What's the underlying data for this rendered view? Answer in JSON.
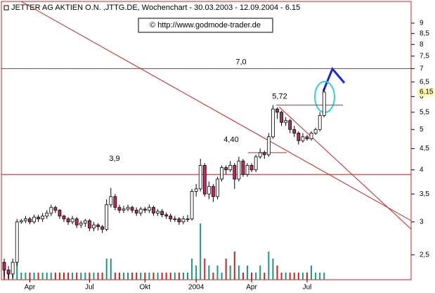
{
  "chart_data": {
    "type": "candlestick",
    "title": "JETTER AG AKTIEN O.N. ,JTTG.DE, Wochenchart - 30.03.2003 - 12.09.2004 - 6.15",
    "watermark": "© http://www.godmode-trader.de",
    "log_scale": true,
    "ylim": [
      2.18,
      10.15
    ],
    "yticks": [
      {
        "value": 2.5,
        "label": "2,5"
      },
      3,
      {
        "value": 3.5,
        "label": "3,5"
      },
      4,
      {
        "value": 4.5,
        "label": "4,5"
      },
      5,
      {
        "value": 5.5,
        "label": "5,5"
      },
      6,
      {
        "value": 6.5,
        "label": "6,5"
      },
      7,
      {
        "value": 7.5,
        "label": "7,5"
      },
      8,
      {
        "value": 8.5,
        "label": "8,5"
      },
      9
    ],
    "last_price": {
      "value": 6.15,
      "label": "6.15"
    },
    "hlines": [
      {
        "value": 7,
        "label": "7,0"
      },
      {
        "value": 3.9,
        "label": "3,9"
      }
    ],
    "levels": [
      {
        "value": 4.4,
        "label": "4,40"
      },
      {
        "value": 5.72,
        "label": "5,72"
      }
    ],
    "up_color": "#ffffff",
    "down_color": "#b03060",
    "volume_up_color": "#1a9a7a",
    "volume_down_color": "#d02020",
    "categories": [
      null,
      null,
      null,
      null,
      null,
      null,
      "Apr",
      null,
      null,
      null,
      null,
      null,
      null,
      null,
      null,
      null,
      null,
      null,
      null,
      null,
      "Jul",
      null,
      null,
      null,
      null,
      null,
      null,
      null,
      null,
      null,
      null,
      null,
      null,
      "Okt",
      null,
      null,
      null,
      null,
      null,
      null,
      null,
      null,
      null,
      null,
      null,
      "2004",
      null,
      null,
      null,
      null,
      null,
      null,
      null,
      null,
      null,
      null,
      null,
      null,
      "Apr",
      null,
      null,
      null,
      null,
      null,
      null,
      null,
      null,
      null,
      null,
      null,
      null,
      "Jul",
      null,
      null,
      null,
      null
    ],
    "open": [
      2.4,
      2.3,
      2.25,
      2.4,
      3.0,
      3.02,
      3.05,
      3.0,
      3.08,
      3.05,
      3.1,
      3.15,
      3.25,
      3.2,
      3.1,
      3.05,
      3.0,
      3.05,
      2.95,
      2.98,
      3.02,
      2.9,
      2.95,
      2.92,
      2.88,
      3.3,
      3.45,
      3.25,
      3.2,
      3.22,
      3.25,
      3.2,
      3.15,
      3.22,
      3.2,
      3.25,
      3.15,
      3.18,
      3.12,
      3.1,
      3.05,
      3.05,
      3.0,
      3.05,
      3.05,
      3.55,
      3.6,
      4.1,
      3.5,
      3.65,
      3.45,
      3.8,
      4.05,
      4.0,
      4.1,
      3.8,
      4.2,
      3.9,
      4.1,
      4.0,
      4.3,
      4.4,
      4.35,
      4.8,
      5.6,
      5.5,
      5.2,
      5.25,
      5.0,
      4.9,
      4.7,
      4.8,
      4.75,
      4.9,
      5.0,
      5.4
    ],
    "high": [
      2.45,
      2.35,
      2.45,
      3.05,
      3.05,
      3.1,
      3.08,
      3.12,
      3.12,
      3.15,
      3.2,
      3.3,
      3.28,
      3.22,
      3.12,
      3.08,
      3.1,
      3.08,
      3.02,
      3.05,
      3.05,
      3.0,
      2.98,
      2.95,
      3.4,
      3.62,
      3.5,
      3.3,
      3.28,
      3.3,
      3.28,
      3.25,
      3.26,
      3.26,
      3.3,
      3.28,
      3.22,
      3.22,
      3.16,
      3.14,
      3.1,
      3.08,
      3.1,
      3.12,
      3.6,
      3.7,
      4.25,
      4.15,
      3.75,
      3.7,
      3.85,
      4.1,
      4.1,
      4.2,
      4.15,
      4.3,
      4.25,
      4.15,
      4.15,
      4.35,
      4.5,
      4.45,
      4.9,
      5.72,
      5.65,
      5.55,
      5.35,
      5.3,
      5.1,
      4.95,
      4.9,
      4.85,
      4.95,
      5.05,
      5.5,
      6.3
    ],
    "low": [
      2.22,
      2.2,
      2.2,
      2.35,
      2.97,
      2.98,
      2.96,
      2.97,
      3.0,
      3.0,
      3.05,
      3.1,
      3.15,
      3.05,
      3.0,
      2.95,
      2.96,
      2.9,
      2.9,
      2.92,
      2.85,
      2.85,
      2.86,
      2.82,
      2.85,
      3.25,
      3.2,
      3.15,
      3.15,
      3.18,
      3.15,
      3.1,
      3.1,
      3.15,
      3.15,
      3.1,
      3.1,
      3.08,
      3.05,
      3.0,
      3.0,
      2.95,
      2.96,
      3.0,
      3.02,
      3.45,
      3.55,
      3.45,
      3.4,
      3.35,
      3.4,
      3.75,
      3.9,
      3.95,
      3.6,
      3.75,
      3.85,
      3.85,
      3.95,
      3.95,
      4.25,
      4.25,
      4.3,
      4.75,
      5.3,
      5.1,
      5.1,
      4.9,
      4.8,
      4.6,
      4.65,
      4.7,
      4.7,
      4.85,
      4.95,
      5.35
    ],
    "close": [
      2.3,
      2.25,
      2.4,
      3.0,
      3.02,
      3.05,
      3.0,
      3.08,
      3.05,
      3.1,
      3.15,
      3.25,
      3.2,
      3.1,
      3.05,
      3.0,
      3.05,
      2.95,
      2.98,
      3.02,
      2.9,
      2.95,
      2.92,
      2.88,
      3.3,
      3.45,
      3.25,
      3.2,
      3.22,
      3.25,
      3.2,
      3.15,
      3.22,
      3.2,
      3.25,
      3.15,
      3.18,
      3.12,
      3.1,
      3.05,
      3.05,
      3.0,
      3.05,
      3.05,
      3.55,
      3.6,
      4.1,
      3.5,
      3.65,
      3.45,
      3.8,
      4.05,
      4.0,
      4.1,
      3.8,
      4.2,
      3.9,
      4.1,
      4.0,
      4.3,
      4.4,
      4.35,
      4.8,
      5.6,
      5.5,
      5.2,
      5.25,
      5.0,
      4.9,
      4.7,
      4.8,
      4.75,
      4.9,
      5.0,
      5.4,
      6.15
    ],
    "volume": [
      2,
      1,
      1,
      3,
      1,
      1,
      1,
      1,
      1,
      1,
      1,
      1,
      1,
      1,
      1,
      1,
      1,
      1,
      1,
      1,
      1,
      1,
      1,
      1,
      3,
      3,
      1,
      1,
      1,
      1,
      1,
      1,
      1,
      1,
      1,
      1,
      1,
      1,
      1,
      1,
      1,
      1,
      1,
      1,
      3,
      2,
      8,
      3,
      2,
      1,
      2,
      1,
      3,
      2,
      4,
      2,
      1,
      2,
      1,
      1,
      2,
      1,
      4,
      3,
      2,
      1,
      1,
      1,
      1,
      1,
      1,
      1,
      2,
      1,
      1,
      1
    ]
  }
}
